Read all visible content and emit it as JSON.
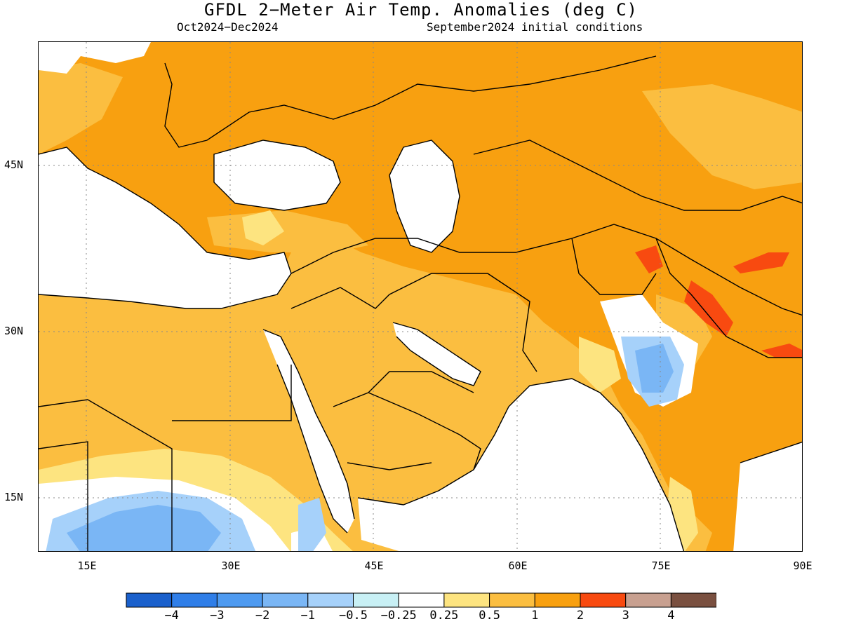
{
  "title": "GFDL 2−Meter Air Temp. Anomalies (deg C)",
  "subtitle_left": "Oct2024−Dec2024",
  "subtitle_right": "September2024 initial conditions",
  "lat_labels": [
    "45N",
    "30N",
    "15N"
  ],
  "lon_labels": [
    "15E",
    "30E",
    "45E",
    "60E",
    "75E",
    "90E"
  ],
  "colorbar": {
    "colors": [
      "#1a60cc",
      "#2f7ee8",
      "#4e9af0",
      "#7ab6f5",
      "#a6d1fa",
      "#c8f0f5",
      "#ffffff",
      "#fde480",
      "#fbbe40",
      "#f8a010",
      "#f84a10",
      "#c8a090",
      "#7a5040"
    ],
    "labels": [
      "−4",
      "−3",
      "−2",
      "−1",
      "−0.5",
      "−0.25",
      "0.25",
      "0.5",
      "1",
      "2",
      "3",
      "4"
    ]
  }
}
